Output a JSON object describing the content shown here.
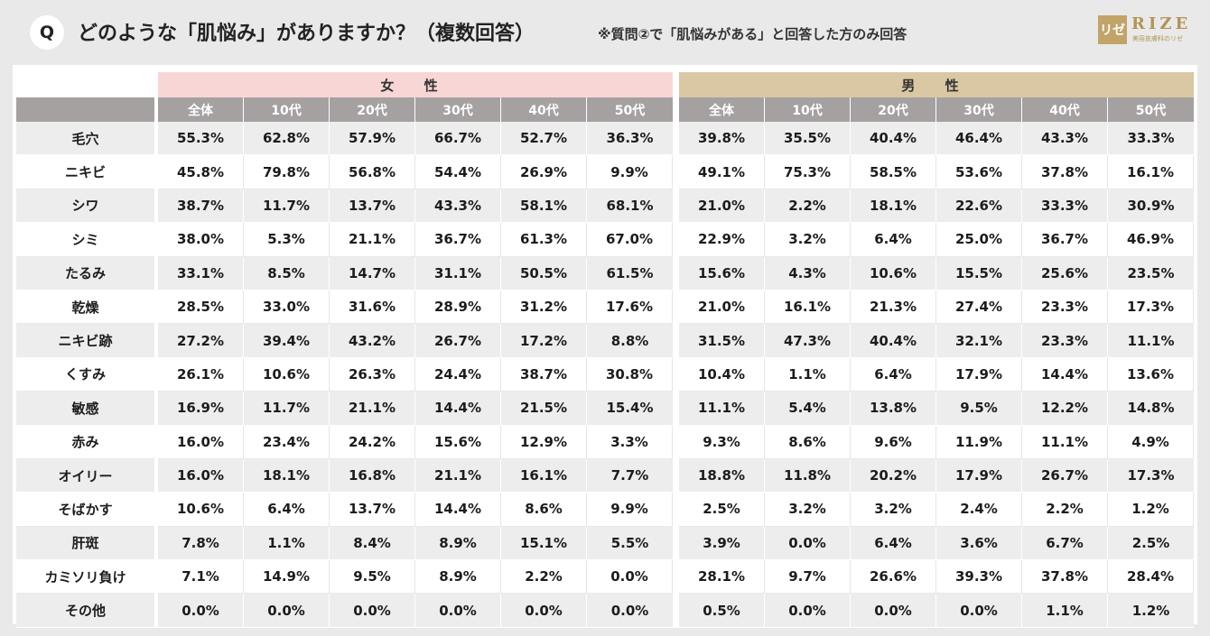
{
  "header": {
    "badge": "Q",
    "title": "どのような「肌悩み」がありますか？（複数回答）",
    "note": "※質問②で「肌悩みがある」と回答した方のみ回答",
    "logo_mark": "リゼ",
    "logo_text": "RIZE",
    "logo_sub": "美容皮膚科のリゼ"
  },
  "colors": {
    "female_header": "#f8d6d6",
    "male_header": "#d9c8a3",
    "subheader": "#a5a1a1",
    "brand": "#c2a468"
  },
  "chart_data": {
    "type": "table",
    "groups": [
      {
        "name": "女 性",
        "columns": [
          "全体",
          "10代",
          "20代",
          "30代",
          "40代",
          "50代"
        ]
      },
      {
        "name": "男 性",
        "columns": [
          "全体",
          "10代",
          "20代",
          "30代",
          "40代",
          "50代"
        ]
      }
    ],
    "rows": [
      {
        "label": "毛穴",
        "female": [
          "55.3%",
          "62.8%",
          "57.9%",
          "66.7%",
          "52.7%",
          "36.3%"
        ],
        "male": [
          "39.8%",
          "35.5%",
          "40.4%",
          "46.4%",
          "43.3%",
          "33.3%"
        ]
      },
      {
        "label": "ニキビ",
        "female": [
          "45.8%",
          "79.8%",
          "56.8%",
          "54.4%",
          "26.9%",
          "9.9%"
        ],
        "male": [
          "49.1%",
          "75.3%",
          "58.5%",
          "53.6%",
          "37.8%",
          "16.1%"
        ]
      },
      {
        "label": "シワ",
        "female": [
          "38.7%",
          "11.7%",
          "13.7%",
          "43.3%",
          "58.1%",
          "68.1%"
        ],
        "male": [
          "21.0%",
          "2.2%",
          "18.1%",
          "22.6%",
          "33.3%",
          "30.9%"
        ]
      },
      {
        "label": "シミ",
        "female": [
          "38.0%",
          "5.3%",
          "21.1%",
          "36.7%",
          "61.3%",
          "67.0%"
        ],
        "male": [
          "22.9%",
          "3.2%",
          "6.4%",
          "25.0%",
          "36.7%",
          "46.9%"
        ]
      },
      {
        "label": "たるみ",
        "female": [
          "33.1%",
          "8.5%",
          "14.7%",
          "31.1%",
          "50.5%",
          "61.5%"
        ],
        "male": [
          "15.6%",
          "4.3%",
          "10.6%",
          "15.5%",
          "25.6%",
          "23.5%"
        ]
      },
      {
        "label": "乾燥",
        "female": [
          "28.5%",
          "33.0%",
          "31.6%",
          "28.9%",
          "31.2%",
          "17.6%"
        ],
        "male": [
          "21.0%",
          "16.1%",
          "21.3%",
          "27.4%",
          "23.3%",
          "17.3%"
        ]
      },
      {
        "label": "ニキビ跡",
        "female": [
          "27.2%",
          "39.4%",
          "43.2%",
          "26.7%",
          "17.2%",
          "8.8%"
        ],
        "male": [
          "31.5%",
          "47.3%",
          "40.4%",
          "32.1%",
          "23.3%",
          "11.1%"
        ]
      },
      {
        "label": "くすみ",
        "female": [
          "26.1%",
          "10.6%",
          "26.3%",
          "24.4%",
          "38.7%",
          "30.8%"
        ],
        "male": [
          "10.4%",
          "1.1%",
          "6.4%",
          "17.9%",
          "14.4%",
          "13.6%"
        ]
      },
      {
        "label": "敏感",
        "female": [
          "16.9%",
          "11.7%",
          "21.1%",
          "14.4%",
          "21.5%",
          "15.4%"
        ],
        "male": [
          "11.1%",
          "5.4%",
          "13.8%",
          "9.5%",
          "12.2%",
          "14.8%"
        ]
      },
      {
        "label": "赤み",
        "female": [
          "16.0%",
          "23.4%",
          "24.2%",
          "15.6%",
          "12.9%",
          "3.3%"
        ],
        "male": [
          "9.3%",
          "8.6%",
          "9.6%",
          "11.9%",
          "11.1%",
          "4.9%"
        ]
      },
      {
        "label": "オイリー",
        "female": [
          "16.0%",
          "18.1%",
          "16.8%",
          "21.1%",
          "16.1%",
          "7.7%"
        ],
        "male": [
          "18.8%",
          "11.8%",
          "20.2%",
          "17.9%",
          "26.7%",
          "17.3%"
        ]
      },
      {
        "label": "そばかす",
        "female": [
          "10.6%",
          "6.4%",
          "13.7%",
          "14.4%",
          "8.6%",
          "9.9%"
        ],
        "male": [
          "2.5%",
          "3.2%",
          "3.2%",
          "2.4%",
          "2.2%",
          "1.2%"
        ]
      },
      {
        "label": "肝斑",
        "female": [
          "7.8%",
          "1.1%",
          "8.4%",
          "8.9%",
          "15.1%",
          "5.5%"
        ],
        "male": [
          "3.9%",
          "0.0%",
          "6.4%",
          "3.6%",
          "6.7%",
          "2.5%"
        ]
      },
      {
        "label": "カミソリ負け",
        "female": [
          "7.1%",
          "14.9%",
          "9.5%",
          "8.9%",
          "2.2%",
          "0.0%"
        ],
        "male": [
          "28.1%",
          "9.7%",
          "26.6%",
          "39.3%",
          "37.8%",
          "28.4%"
        ]
      },
      {
        "label": "その他",
        "female": [
          "0.0%",
          "0.0%",
          "0.0%",
          "0.0%",
          "0.0%",
          "0.0%"
        ],
        "male": [
          "0.5%",
          "0.0%",
          "0.0%",
          "0.0%",
          "1.1%",
          "1.2%"
        ]
      }
    ]
  }
}
